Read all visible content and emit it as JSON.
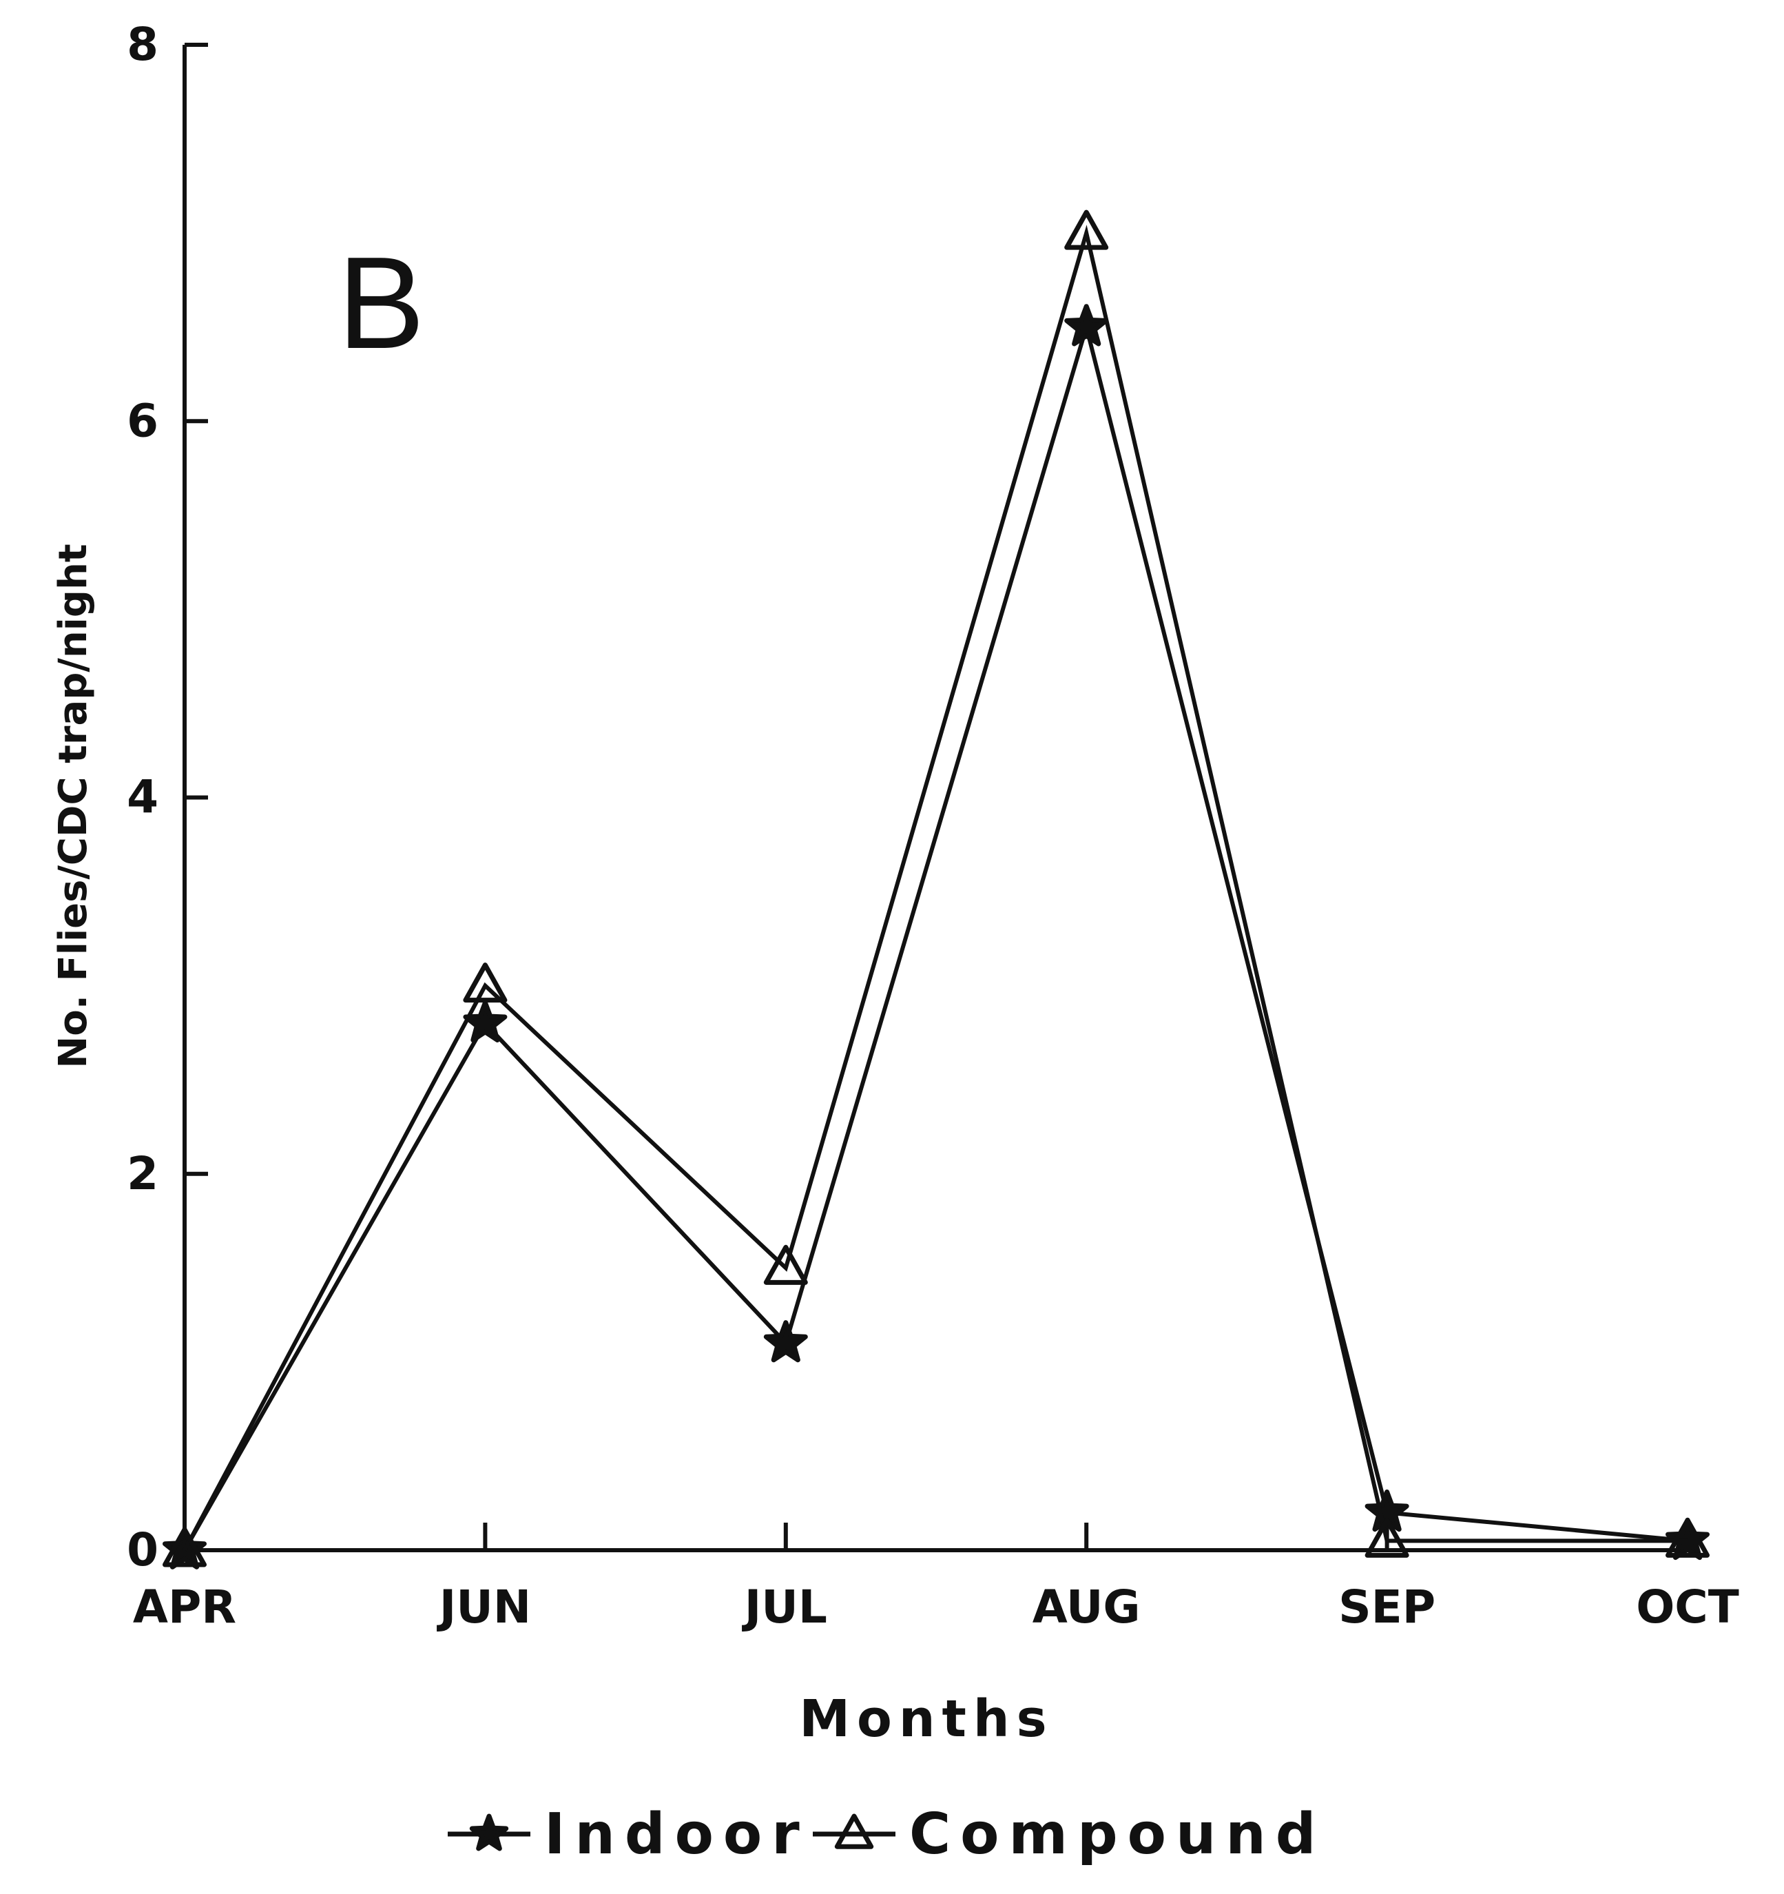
{
  "chart_data": {
    "type": "line",
    "panel_label": "B",
    "xlabel": "Months",
    "ylabel": "No. Flies/CDC trap/night",
    "categories": [
      "APR",
      "JUN",
      "JUL",
      "AUG",
      "SEP",
      "OCT"
    ],
    "ylim": [
      0,
      8
    ],
    "yticks": [
      0,
      2,
      4,
      6,
      8
    ],
    "grid": false,
    "legend_position": "bottom-center",
    "series": [
      {
        "name": "Indoor",
        "marker": "star",
        "color": "#111111",
        "values": [
          0,
          2.8,
          1.1,
          6.5,
          0.2,
          0.05
        ]
      },
      {
        "name": "Compound",
        "marker": "triangle",
        "color": "#111111",
        "values": [
          0,
          3.0,
          1.5,
          7.0,
          0.05,
          0.05
        ]
      }
    ]
  }
}
